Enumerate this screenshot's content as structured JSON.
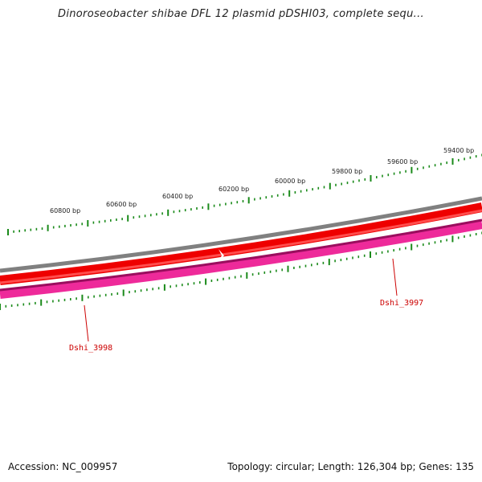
{
  "title": "Dinoroseobacter shibae DFL 12 plasmid pDSHI03, complete sequ...",
  "footer": {
    "accession": "Accession: NC_009957",
    "summary": "Topology: circular; Length: 126,304 bp; Genes: 135"
  },
  "map": {
    "tick_labels": [
      "59400 bp",
      "59600 bp",
      "59800 bp",
      "60000 bp",
      "60200 bp",
      "60400 bp",
      "60600 bp",
      "60800 bp"
    ],
    "genes": [
      {
        "name": "Dshi_3997",
        "color": "#ee0000"
      },
      {
        "name": "Dshi_3998",
        "color": "#ee0000"
      }
    ],
    "colors": {
      "backbone": "#808080",
      "forward_cds": "#ee0000",
      "reverse_cds": "#ee2a9a",
      "tick": "#1a8a1a",
      "label": "#cc0000"
    }
  }
}
